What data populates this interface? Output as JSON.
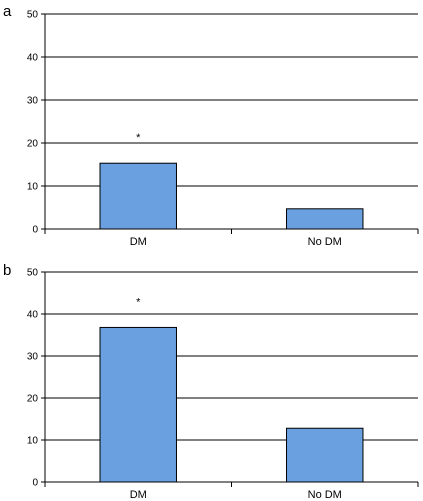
{
  "chart_data": [
    {
      "type": "bar",
      "panel_label": "a",
      "categories": [
        "DM",
        "No DM"
      ],
      "values": [
        15.3,
        4.7
      ],
      "ylim": [
        0,
        50
      ],
      "yticks": [
        "0",
        "10",
        "20",
        "30",
        "40",
        "50"
      ],
      "grid": true,
      "annotations": [
        "*",
        ""
      ],
      "bar_color": "#6a9fe0"
    },
    {
      "type": "bar",
      "panel_label": "b",
      "categories": [
        "DM",
        "No DM"
      ],
      "values": [
        36.8,
        12.8
      ],
      "ylim": [
        0,
        50
      ],
      "yticks": [
        "0",
        "10",
        "20",
        "30",
        "40",
        "50"
      ],
      "grid": true,
      "annotations": [
        "*",
        ""
      ],
      "bar_color": "#6a9fe0"
    }
  ]
}
